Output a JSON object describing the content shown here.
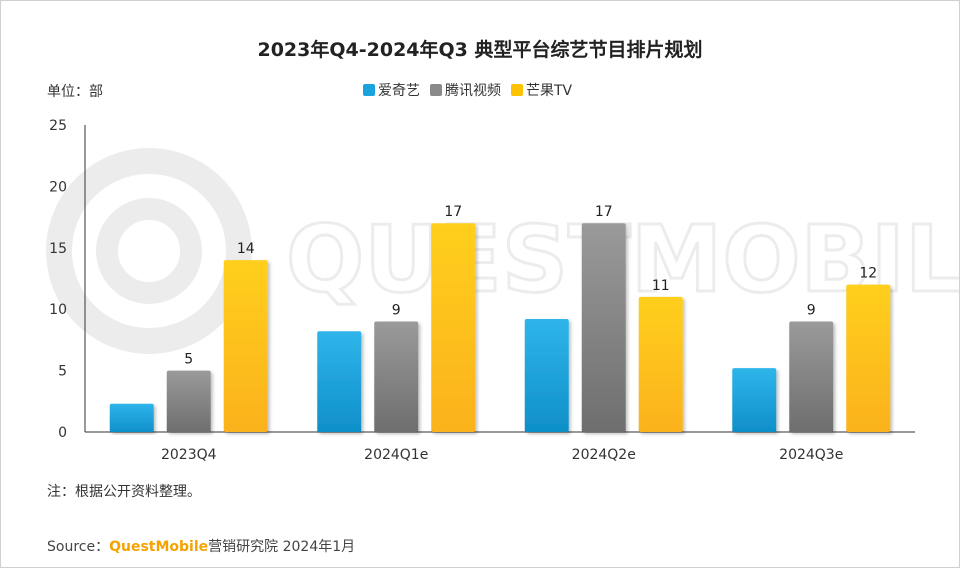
{
  "colors": {
    "iqiyi": "#1aa3dd",
    "tencent": "#8a8a8a",
    "mango": "#ffc200",
    "axis": "#333333",
    "brand": "#f5a300"
  },
  "chart_data": {
    "type": "bar",
    "title": "2023年Q4-2024年Q3 典型平台综艺节目排片规划",
    "unit_label": "单位：部",
    "categories": [
      "2023Q4",
      "2024Q1e",
      "2024Q2e",
      "2024Q3e"
    ],
    "series": [
      {
        "name": "爱奇艺",
        "values": [
          2.3,
          8.2,
          9.2,
          5.2
        ],
        "labels": [
          "",
          "",
          "",
          ""
        ]
      },
      {
        "name": "腾讯视频",
        "values": [
          5,
          9,
          17,
          9
        ],
        "labels": [
          "5",
          "9",
          "17",
          "9"
        ]
      },
      {
        "name": "芒果TV",
        "values": [
          14,
          17,
          11,
          12
        ],
        "labels": [
          "14",
          "17",
          "11",
          "12"
        ]
      }
    ],
    "yticks": [
      "0",
      "5",
      "10",
      "15",
      "20",
      "25"
    ],
    "ylim": [
      0,
      25
    ],
    "grid": false,
    "legend_position": "top-center"
  },
  "note": "注：根据公开资料整理。",
  "source": {
    "prefix": "Source：",
    "brand": "QuestMobile",
    "suffix": "营销研究院 2024年1月"
  },
  "watermark": "QUESTMOBILE"
}
